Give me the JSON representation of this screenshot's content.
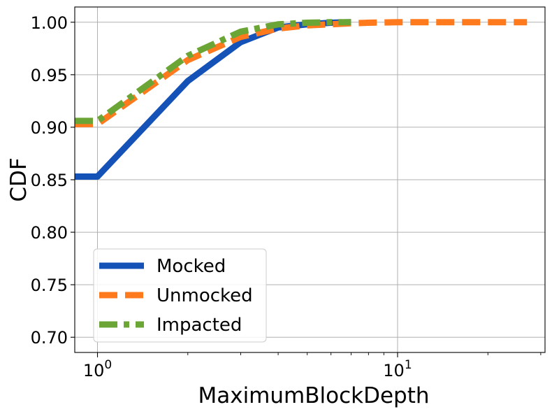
{
  "chart_data": {
    "type": "line",
    "xscale": "log",
    "xlabel": "MaximumBlockDepth",
    "ylabel": "CDF",
    "xlim": [
      0.84,
      31
    ],
    "ylim": [
      0.6855,
      1.0145
    ],
    "x_major_ticks": [
      {
        "value": 1,
        "base": "10",
        "exp": "0"
      },
      {
        "value": 10,
        "base": "10",
        "exp": "1"
      }
    ],
    "y_ticks": [
      0.7,
      0.75,
      0.8,
      0.85,
      0.9,
      0.95,
      1.0
    ],
    "y_tick_labels": [
      "0.70",
      "0.75",
      "0.80",
      "0.85",
      "0.90",
      "0.95",
      "1.00"
    ],
    "grid": true,
    "legend_position": "lower-left",
    "series": [
      {
        "name": "Mocked",
        "color": "#1452b8",
        "style": "solid",
        "x": [
          0.84,
          1,
          2,
          3,
          4,
          5,
          6,
          7
        ],
        "y": [
          0.853,
          0.853,
          0.944,
          0.981,
          0.995,
          0.998,
          0.9995,
          1.0
        ]
      },
      {
        "name": "Unmocked",
        "color": "#ff7a1c",
        "style": "dashed",
        "x": [
          0.84,
          1,
          2,
          3,
          4,
          5,
          6,
          7,
          8,
          10,
          15,
          20,
          27
        ],
        "y": [
          0.903,
          0.903,
          0.964,
          0.986,
          0.994,
          0.997,
          0.998,
          0.999,
          0.9995,
          1.0,
          1.0,
          1.0,
          1.0
        ]
      },
      {
        "name": "Impacted",
        "color": "#6aa536",
        "style": "dashdot",
        "x": [
          0.84,
          1,
          2,
          3,
          4,
          5,
          6,
          7
        ],
        "y": [
          0.906,
          0.906,
          0.968,
          0.991,
          0.998,
          0.9995,
          1.0,
          1.0
        ]
      }
    ]
  }
}
